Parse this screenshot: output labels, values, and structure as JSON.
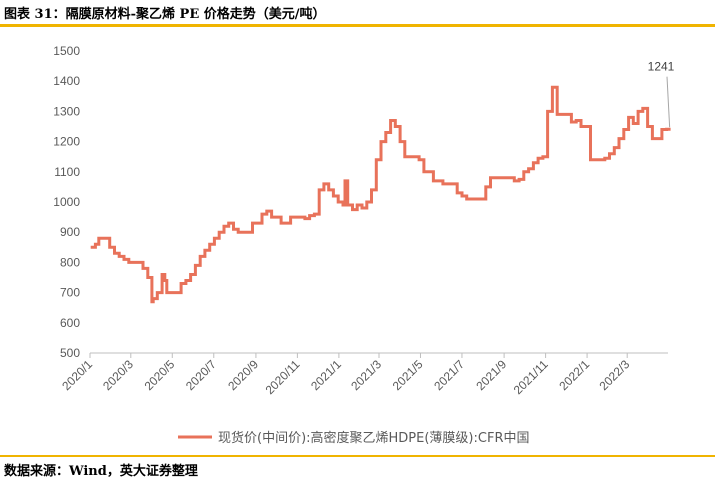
{
  "figure": {
    "title": "图表 31：隔膜原材料-聚乙烯 PE 价格走势（美元/吨）",
    "source": "数据来源：Wind，英大证券整理"
  },
  "colors": {
    "line": "#e8725a",
    "rule": "#f0b400",
    "axis": "#bfbfbf"
  },
  "chart_data": {
    "type": "line",
    "title": "",
    "xlabel": "",
    "ylabel": "",
    "ylim": [
      500,
      1500
    ],
    "yticks": [
      500,
      600,
      700,
      800,
      900,
      1000,
      1100,
      1200,
      1300,
      1400,
      1500
    ],
    "grid": false,
    "legend_position": "bottom",
    "x_ticks": [
      "2020/1",
      "2020/3",
      "2020/5",
      "2020/7",
      "2020/9",
      "2020/11",
      "2021/1",
      "2021/3",
      "2021/5",
      "2021/7",
      "2021/9",
      "2021/11",
      "2022/1",
      "2022/3"
    ],
    "annotation": {
      "label": "1241",
      "value": 1241
    },
    "series": [
      {
        "name": "现货价(中间价):高密度聚乙烯HDPE(薄膜级):CFR中国",
        "x": [
          "2020-01-02",
          "2020-01-09",
          "2020-01-14",
          "2020-01-30",
          "2020-02-06",
          "2020-02-13",
          "2020-02-20",
          "2020-02-27",
          "2020-03-05",
          "2020-03-19",
          "2020-03-26",
          "2020-04-01",
          "2020-04-03",
          "2020-04-09",
          "2020-04-16",
          "2020-04-20",
          "2020-04-23",
          "2020-05-07",
          "2020-05-14",
          "2020-05-21",
          "2020-05-28",
          "2020-06-04",
          "2020-06-11",
          "2020-06-18",
          "2020-06-25",
          "2020-07-02",
          "2020-07-09",
          "2020-07-16",
          "2020-07-23",
          "2020-07-30",
          "2020-08-06",
          "2020-08-13",
          "2020-08-20",
          "2020-08-27",
          "2020-09-10",
          "2020-09-17",
          "2020-09-24",
          "2020-10-08",
          "2020-10-15",
          "2020-10-22",
          "2020-11-05",
          "2020-11-12",
          "2020-11-19",
          "2020-11-26",
          "2020-12-03",
          "2020-12-10",
          "2020-12-17",
          "2020-12-24",
          "2020-12-31",
          "2021-01-07",
          "2021-01-10",
          "2021-01-14",
          "2021-01-21",
          "2021-01-28",
          "2021-02-04",
          "2021-02-11",
          "2021-02-18",
          "2021-02-25",
          "2021-03-04",
          "2021-03-11",
          "2021-03-18",
          "2021-03-25",
          "2021-04-01",
          "2021-04-08",
          "2021-04-15",
          "2021-04-29",
          "2021-05-06",
          "2021-05-20",
          "2021-06-03",
          "2021-06-24",
          "2021-07-01",
          "2021-07-08",
          "2021-08-05",
          "2021-08-12",
          "2021-09-09",
          "2021-09-16",
          "2021-09-23",
          "2021-09-30",
          "2021-10-07",
          "2021-10-14",
          "2021-10-21",
          "2021-10-28",
          "2021-11-04",
          "2021-11-11",
          "2021-11-18",
          "2021-12-09",
          "2021-12-16",
          "2021-12-23",
          "2022-01-06",
          "2022-01-27",
          "2022-02-03",
          "2022-02-10",
          "2022-02-17",
          "2022-02-24",
          "2022-03-03",
          "2022-03-10",
          "2022-03-17",
          "2022-03-24",
          "2022-03-31",
          "2022-04-07",
          "2022-04-14",
          "2022-04-21",
          "2022-04-28"
        ],
        "values": [
          850,
          860,
          880,
          850,
          830,
          820,
          810,
          800,
          800,
          780,
          750,
          670,
          680,
          700,
          760,
          740,
          700,
          700,
          730,
          740,
          760,
          790,
          820,
          840,
          860,
          880,
          900,
          920,
          930,
          910,
          900,
          900,
          900,
          930,
          960,
          970,
          950,
          930,
          930,
          950,
          950,
          945,
          955,
          960,
          1040,
          1060,
          1040,
          1020,
          1000,
          990,
          1070,
          990,
          975,
          990,
          980,
          1000,
          1040,
          1140,
          1200,
          1230,
          1270,
          1250,
          1200,
          1150,
          1150,
          1140,
          1100,
          1070,
          1060,
          1030,
          1020,
          1010,
          1050,
          1080,
          1080,
          1070,
          1075,
          1100,
          1110,
          1130,
          1145,
          1150,
          1300,
          1380,
          1290,
          1265,
          1270,
          1250,
          1140,
          1145,
          1160,
          1180,
          1210,
          1240,
          1280,
          1260,
          1300,
          1310,
          1250,
          1210,
          1210,
          1240,
          1241
        ]
      }
    ]
  }
}
